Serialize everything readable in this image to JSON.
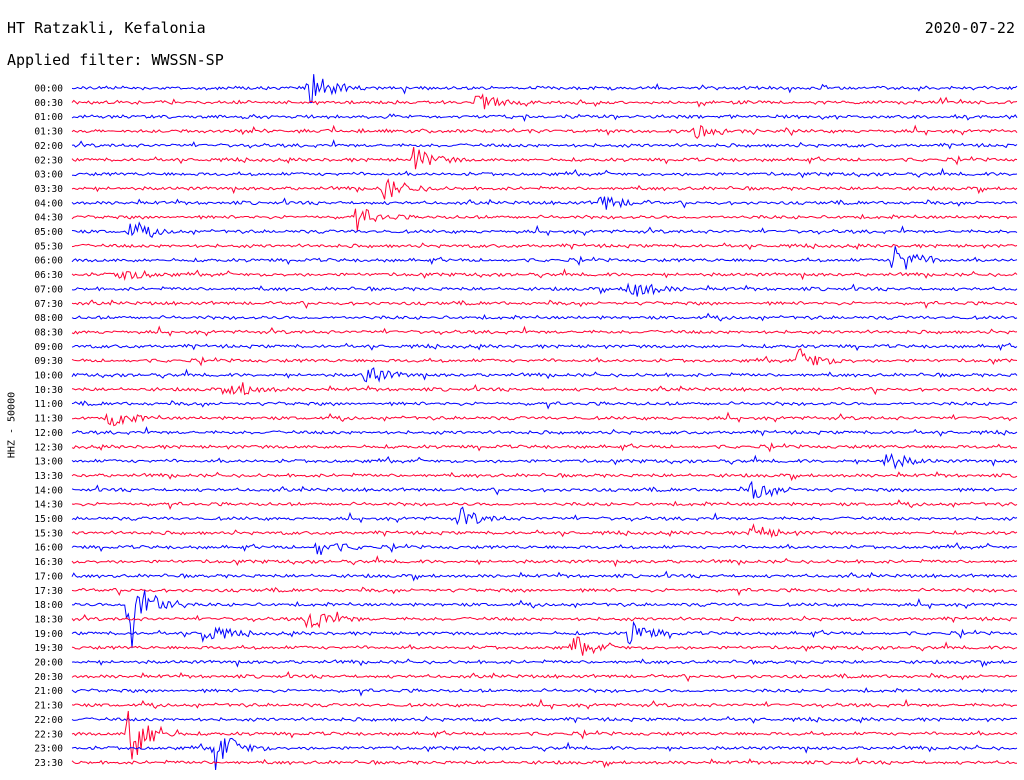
{
  "header": {
    "station": "HT Ratzakli, Kefalonia",
    "date": "2020-07-22",
    "filter": "Applied filter: WWSSN-SP",
    "channel": "HHZ - 50000"
  },
  "colors": {
    "even_row": "#0000ff",
    "odd_row": "#ff0033",
    "text": "#000000",
    "background": "#ffffff"
  },
  "chart_data": {
    "type": "line",
    "title": "HT Ratzakli, Kefalonia",
    "subtitle": "Applied filter: WWSSN-SP",
    "ylabel": "HHZ - 50000",
    "xlabel": "",
    "grid": false,
    "row_labels": [
      "00:00",
      "00:30",
      "01:00",
      "01:30",
      "02:00",
      "02:30",
      "03:00",
      "03:30",
      "04:00",
      "04:30",
      "05:00",
      "05:30",
      "06:00",
      "06:30",
      "07:00",
      "07:30",
      "08:00",
      "08:30",
      "09:00",
      "09:30",
      "10:00",
      "10:30",
      "11:00",
      "11:30",
      "12:00",
      "12:30",
      "13:00",
      "13:30",
      "14:00",
      "14:30",
      "15:00",
      "15:30",
      "16:00",
      "16:30",
      "17:00",
      "17:30",
      "18:00",
      "18:30",
      "19:00",
      "19:30",
      "20:00",
      "20:30",
      "21:00",
      "21:30",
      "22:00",
      "22:30",
      "23:00",
      "23:30"
    ],
    "row_colors": [
      "blue",
      "red"
    ],
    "events": [
      {
        "row": 0,
        "t": 0.25,
        "amp": 3.0
      },
      {
        "row": 1,
        "t": 0.43,
        "amp": 1.3
      },
      {
        "row": 3,
        "t": 0.66,
        "amp": 1.3
      },
      {
        "row": 5,
        "t": 0.36,
        "amp": 2.2
      },
      {
        "row": 7,
        "t": 0.33,
        "amp": 2.0
      },
      {
        "row": 8,
        "t": 0.56,
        "amp": 1.5
      },
      {
        "row": 9,
        "t": 0.3,
        "amp": 1.8
      },
      {
        "row": 10,
        "t": 0.06,
        "amp": 1.5
      },
      {
        "row": 12,
        "t": 0.87,
        "amp": 3.0
      },
      {
        "row": 13,
        "t": 0.05,
        "amp": 1.6
      },
      {
        "row": 14,
        "t": 0.59,
        "amp": 2.2
      },
      {
        "row": 19,
        "t": 0.77,
        "amp": 1.9
      },
      {
        "row": 20,
        "t": 0.31,
        "amp": 1.7
      },
      {
        "row": 21,
        "t": 0.17,
        "amp": 1.6
      },
      {
        "row": 23,
        "t": 0.04,
        "amp": 1.6
      },
      {
        "row": 26,
        "t": 0.86,
        "amp": 1.7
      },
      {
        "row": 28,
        "t": 0.72,
        "amp": 1.8
      },
      {
        "row": 30,
        "t": 0.41,
        "amp": 1.6
      },
      {
        "row": 31,
        "t": 0.72,
        "amp": 1.4
      },
      {
        "row": 32,
        "t": 0.26,
        "amp": 1.5
      },
      {
        "row": 36,
        "t": 0.06,
        "amp": 8.0
      },
      {
        "row": 37,
        "t": 0.25,
        "amp": 2.5
      },
      {
        "row": 38,
        "t": 0.59,
        "amp": 2.0
      },
      {
        "row": 38,
        "t": 0.14,
        "amp": 1.8
      },
      {
        "row": 39,
        "t": 0.53,
        "amp": 1.8
      },
      {
        "row": 45,
        "t": 0.06,
        "amp": 6.0
      },
      {
        "row": 46,
        "t": 0.15,
        "amp": 3.5
      }
    ]
  }
}
